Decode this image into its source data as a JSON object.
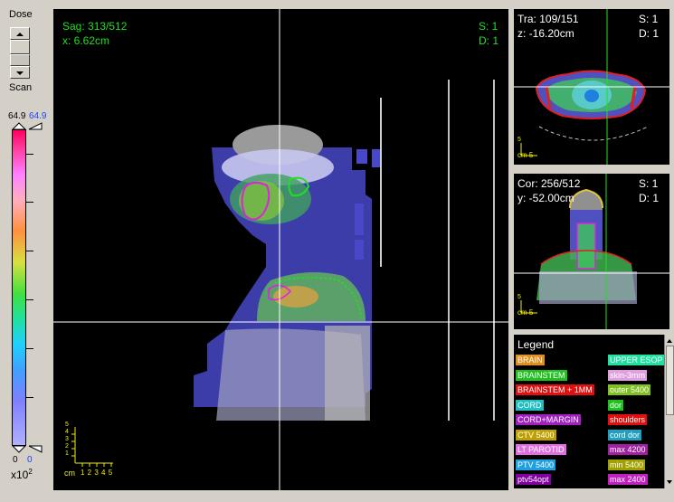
{
  "dose_panel": {
    "title": "Dose",
    "scan_label": "Scan",
    "max_left": "64.9",
    "max_right": "64.9",
    "min_left": "0",
    "min_right": "0",
    "unit": "x10",
    "unit_exp": "2"
  },
  "sagittal": {
    "slice": "Sag: 313/512",
    "coord": "x: 6.62cm",
    "s": "S: 1",
    "d": "D: 1",
    "scale_unit": "cm",
    "scale_ticks": "1 2 3 4 5",
    "scale_left": [
      "5",
      "4",
      "3",
      "2",
      "1"
    ]
  },
  "transverse": {
    "slice": "Tra: 109/151",
    "coord": "z: -16.20cm",
    "s": "S: 1",
    "d": "D: 1",
    "scale_s": "5",
    "scale_cm": "cm 5"
  },
  "coronal": {
    "slice": "Cor: 256/512",
    "coord": "y: -52.00cm",
    "s": "S: 1",
    "d": "D: 1",
    "scale_s": "5",
    "scale_cm": "cm 5"
  },
  "legend": {
    "title": "Legend",
    "items_left": [
      {
        "label": "BRAIN",
        "color": "#e09020"
      },
      {
        "label": "BRAINSTEM",
        "color": "#20c020"
      },
      {
        "label": "BRAINSTEM + 1MM",
        "color": "#e01010"
      },
      {
        "label": "CORD",
        "color": "#20c0c0"
      },
      {
        "label": "CORD+MARGIN",
        "color": "#a020c0"
      },
      {
        "label": "CTV 5400",
        "color": "#c0a000"
      },
      {
        "label": "LT PAROTID",
        "color": "#e070e0"
      },
      {
        "label": "PTV 5400",
        "color": "#20a0e0"
      },
      {
        "label": "ptv54opt",
        "color": "#8000a0"
      }
    ],
    "items_right": [
      {
        "label": "UPPER ESOP",
        "color": "#20e0a0"
      },
      {
        "label": "skin-3mm",
        "color": "#e0a0e0"
      },
      {
        "label": "outer 5400",
        "color": "#80c020"
      },
      {
        "label": "dor",
        "color": "#20c020"
      },
      {
        "label": "shoulders",
        "color": "#e01010"
      },
      {
        "label": "cord dor",
        "color": "#20a0c0"
      },
      {
        "label": "max 4200",
        "color": "#a020a0"
      },
      {
        "label": "min 5400",
        "color": "#a0a000"
      },
      {
        "label": "max 2400",
        "color": "#c020c0"
      }
    ]
  }
}
